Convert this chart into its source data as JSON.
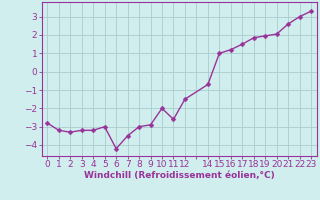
{
  "x": [
    0,
    1,
    2,
    3,
    4,
    5,
    6,
    7,
    8,
    9,
    10,
    11,
    12,
    14,
    15,
    16,
    17,
    18,
    19,
    20,
    21,
    22,
    23
  ],
  "y": [
    -2.8,
    -3.2,
    -3.3,
    -3.2,
    -3.2,
    -3.0,
    -4.2,
    -3.5,
    -3.0,
    -2.9,
    -2.0,
    -2.6,
    -1.5,
    -0.7,
    1.0,
    1.2,
    1.5,
    1.85,
    1.95,
    2.05,
    2.6,
    3.0,
    3.3
  ],
  "line_color": "#993399",
  "marker_color": "#993399",
  "bg_color": "#d0eeee",
  "grid_color": "#aacccc",
  "axis_color": "#993399",
  "xlabel": "Windchill (Refroidissement éolien,°C)",
  "xlabel_fontsize": 6.5,
  "tick_fontsize": 6.5,
  "xlim": [
    -0.5,
    23.5
  ],
  "ylim": [
    -4.6,
    3.8
  ],
  "yticks": [
    -4,
    -3,
    -2,
    -1,
    0,
    1,
    2,
    3
  ],
  "xtick_labels": [
    "0",
    "1",
    "2",
    "3",
    "4",
    "5",
    "6",
    "7",
    "8",
    "9",
    "10",
    "11",
    "12",
    "",
    "14",
    "15",
    "16",
    "17",
    "18",
    "19",
    "20",
    "21",
    "22",
    "23"
  ],
  "line_width": 1.0,
  "marker_size": 2.5
}
